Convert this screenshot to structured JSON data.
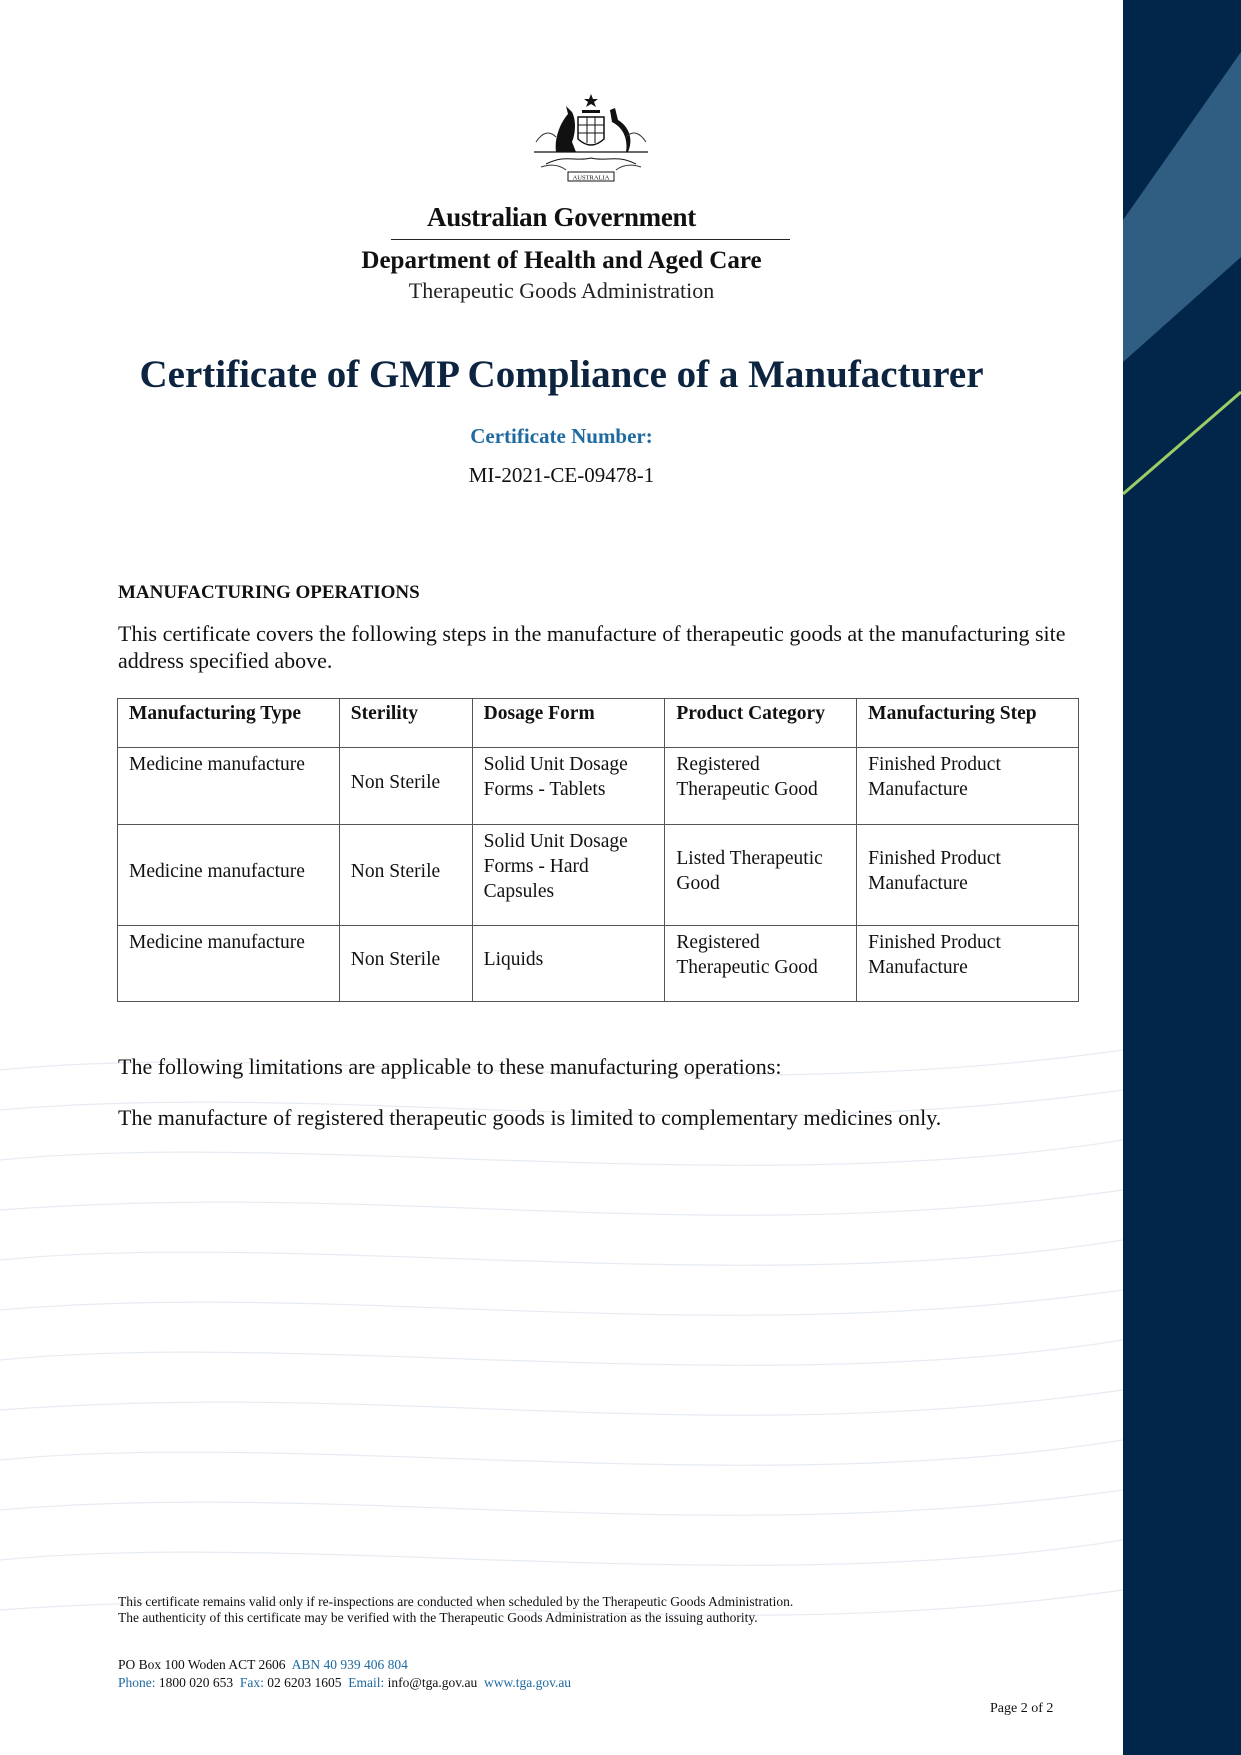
{
  "header": {
    "crest_text": "AUSTRALIA",
    "government": "Australian Government",
    "department": "Department of Health and Aged Care",
    "agency": "Therapeutic Goods Administration"
  },
  "title": "Certificate of GMP Compliance of a Manufacturer",
  "certificate": {
    "label": "Certificate Number:",
    "number": "MI-2021-CE-09478-1"
  },
  "operations": {
    "heading": "MANUFACTURING OPERATIONS",
    "intro": "This certificate covers the following steps in the manufacture of therapeutic goods at the manufacturing site address specified above.",
    "columns": [
      "Manufacturing Type",
      "Sterility",
      "Dosage Form",
      "Product Category",
      "Manufacturing Step"
    ],
    "rows": [
      [
        "Medicine manufacture",
        "Non Sterile",
        "Solid Unit Dosage Forms - Tablets",
        "Registered Therapeutic Good",
        "Finished Product Manufacture"
      ],
      [
        "Medicine manufacture",
        "Non Sterile",
        "Solid Unit Dosage Forms - Hard Capsules",
        "Listed Therapeutic Good",
        "Finished Product Manufacture"
      ],
      [
        "Medicine manufacture",
        "Non Sterile",
        "Liquids",
        "Registered Therapeutic Good",
        "Finished Product Manufacture"
      ]
    ]
  },
  "limitations": {
    "intro": "The following limitations are applicable to these manufacturing operations:",
    "text": "The manufacture of registered therapeutic goods is limited to complementary medicines only."
  },
  "footer": {
    "validity": "This certificate remains valid only if re-inspections are conducted when scheduled by the Therapeutic Goods Administration.",
    "authenticity": "The authenticity of this certificate may be verified with the Therapeutic Goods Administration as the issuing authority.",
    "address": "PO Box 100  Woden ACT 2606",
    "abn": "ABN 40 939 406 804",
    "phone_label": "Phone:",
    "phone": "1800 020 653",
    "fax_label": "Fax:",
    "fax": "02 6203 1605",
    "email_label": "Email:",
    "email": "info@tga.gov.au",
    "website": "www.tga.gov.au",
    "page": "Page 2 of 2"
  },
  "colors": {
    "navy": "#02264a",
    "steel": "#2f5e82",
    "green": "#9ccc65",
    "accent_blue": "#1f6aa0",
    "title": "#0d2440"
  }
}
